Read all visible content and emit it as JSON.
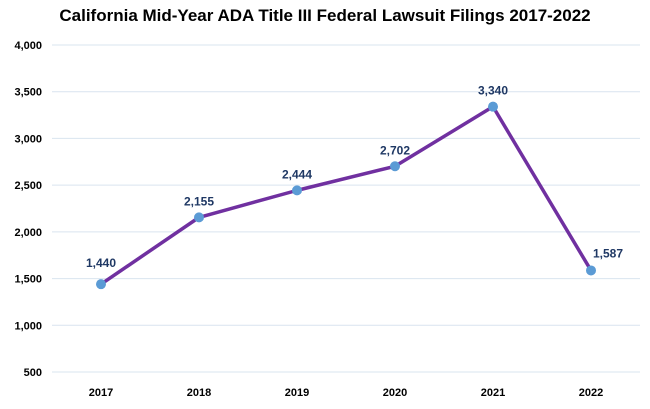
{
  "chart_data": {
    "type": "line",
    "title": "California Mid-Year ADA Title III Federal Lawsuit Filings 2017-2022",
    "xlabel": "",
    "ylabel": "",
    "categories": [
      "2017",
      "2018",
      "2019",
      "2020",
      "2021",
      "2022"
    ],
    "series": [
      {
        "name": "Filings",
        "values": [
          1440,
          2155,
          2444,
          2702,
          3340,
          1587
        ],
        "labels": [
          "1,440",
          "2,155",
          "2,444",
          "2,702",
          "3,340",
          "1,587"
        ]
      }
    ],
    "ylim": [
      500,
      4000
    ],
    "yticks": [
      500,
      1000,
      1500,
      2000,
      2500,
      3000,
      3500,
      4000
    ],
    "ytick_labels": [
      "500",
      "1,000",
      "1,500",
      "2,000",
      "2,500",
      "3,000",
      "3,500",
      "4,000"
    ],
    "grid": true,
    "legend": "none",
    "colors": {
      "line": "#7030a0",
      "marker": "#5b9bd5",
      "label": "#1f3864",
      "grid": "#d9e4ef"
    }
  }
}
